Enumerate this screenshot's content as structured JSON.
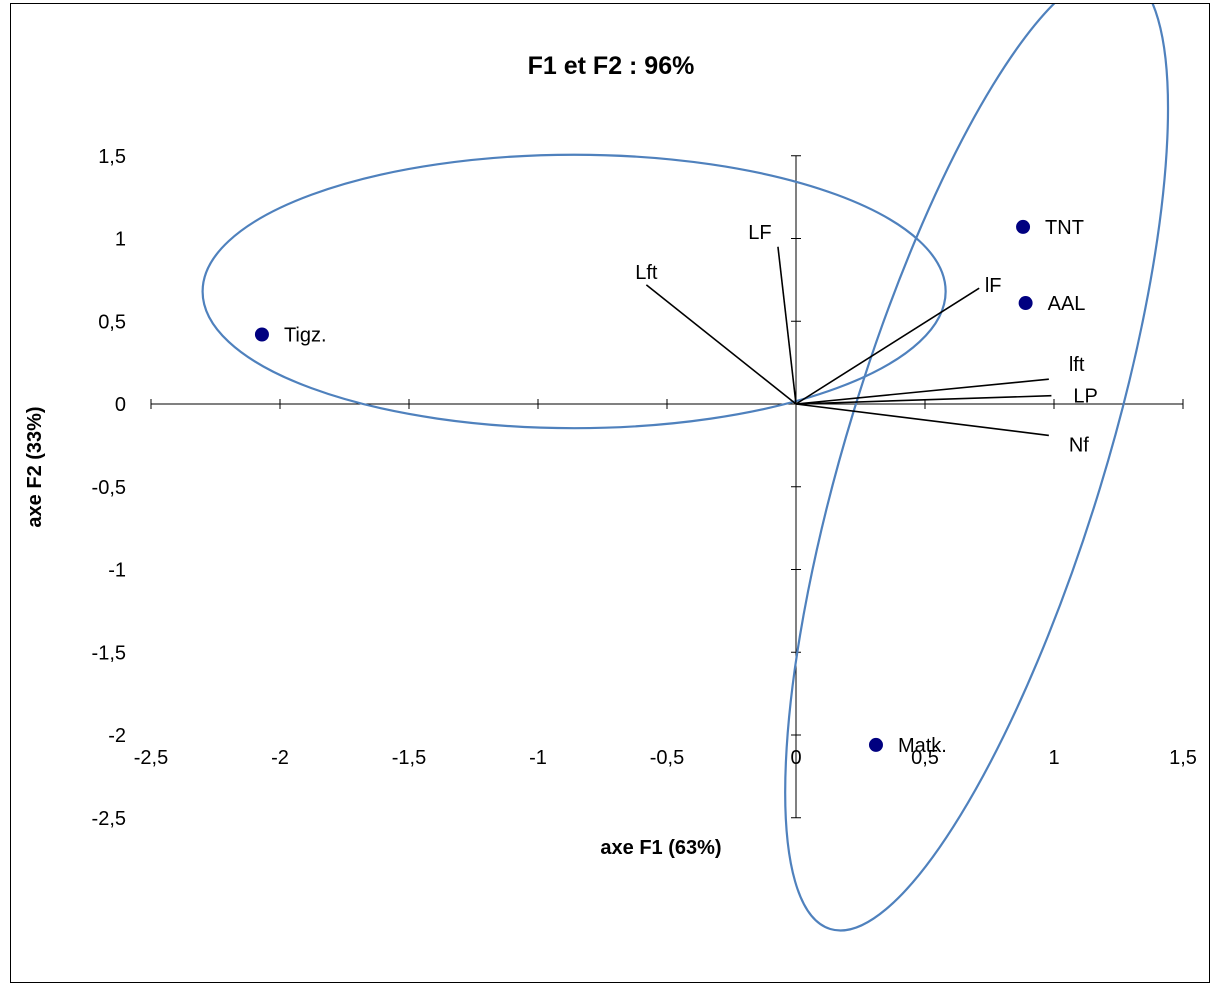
{
  "chart_data": {
    "type": "scatter",
    "title": "F1 et F2 : 96%",
    "xlabel": "axe F1 (63%)",
    "ylabel": "axe F2 (33%)",
    "xlim": [
      -2.5,
      1.5
    ],
    "ylim": [
      -2.5,
      1.5
    ],
    "xticks": [
      "-2,5",
      "-2",
      "-1,5",
      "-1",
      "-0,5",
      "0",
      "0,5",
      "1",
      "1,5"
    ],
    "yticks": [
      "1,5",
      "1",
      "0,5",
      "0",
      "-0,5",
      "-1",
      "-1,5",
      "-2",
      "-2,5"
    ],
    "observations": [
      {
        "label": "TNT",
        "x": 0.88,
        "y": 1.07
      },
      {
        "label": "AAL",
        "x": 0.89,
        "y": 0.61
      },
      {
        "label": "Tigz.",
        "x": -2.07,
        "y": 0.42
      },
      {
        "label": "Matk.",
        "x": 0.31,
        "y": -2.06
      }
    ],
    "variables": [
      {
        "label": "LF",
        "x": -0.07,
        "y": 0.95
      },
      {
        "label": "Lft",
        "x": -0.58,
        "y": 0.72
      },
      {
        "label": "lF",
        "x": 0.71,
        "y": 0.7
      },
      {
        "label": "lft",
        "x": 0.98,
        "y": 0.15
      },
      {
        "label": "LP",
        "x": 0.99,
        "y": 0.05
      },
      {
        "label": "Nf",
        "x": 0.98,
        "y": -0.19
      }
    ],
    "groups": [
      {
        "cx": -0.86,
        "cy": 0.68,
        "rx": 1.44,
        "ry": 0.53,
        "angle_deg": 0
      },
      {
        "cx": 0.7,
        "cy": -0.28,
        "rx": 1.94,
        "ry": 0.5,
        "angle_deg": 73
      }
    ],
    "marker_color": "#000080",
    "ellipse_color": "#4f81bd",
    "grid": false,
    "legend": "none"
  }
}
